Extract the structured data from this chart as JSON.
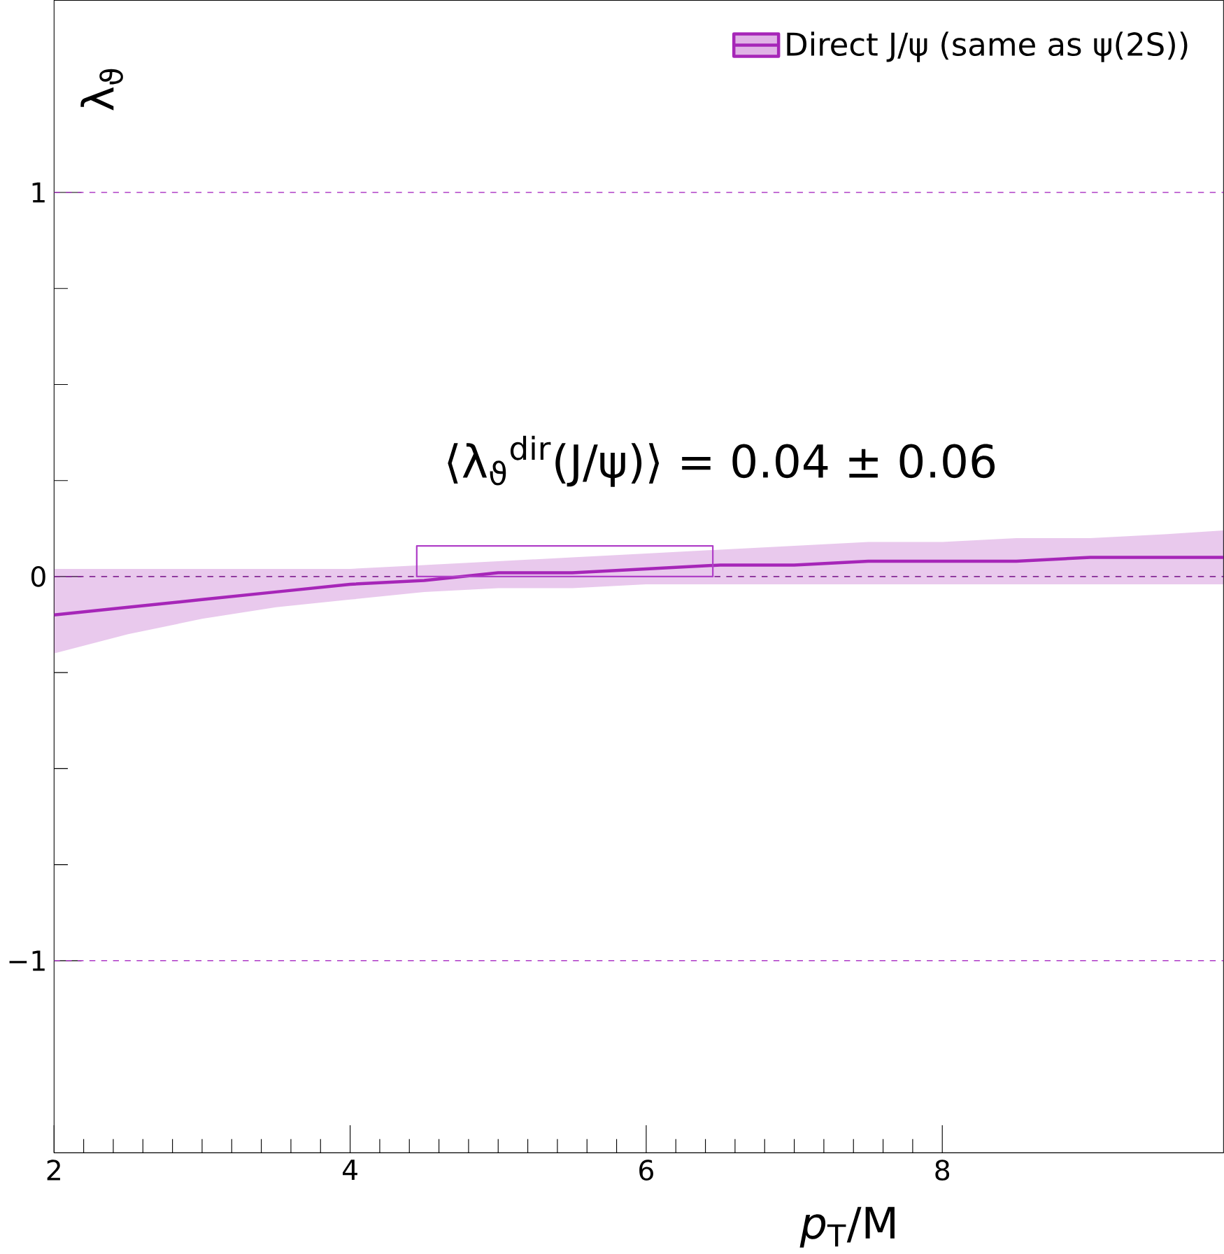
{
  "chart_data": {
    "type": "line",
    "xlabel": "*p*$_{T}$/M",
    "ylabel": "λ$_{ϑ}$",
    "xlim": [
      2,
      9.9
    ],
    "ylim": [
      -1.5,
      1.5
    ],
    "xticks": [
      2,
      4,
      6,
      8
    ],
    "yticks": [
      {
        "value": -1,
        "label": "−1"
      },
      0,
      1
    ],
    "grid": false,
    "legend": "top right",
    "marker": "none",
    "line_style": "solid",
    "series": [
      {
        "name": "Direct J/ψ (same as ψ(2S))",
        "color": "#a626b8",
        "x": [
          2,
          2.5,
          3,
          3.5,
          4,
          4.5,
          5,
          5.5,
          6,
          6.5,
          7,
          7.5,
          8,
          8.5,
          9,
          9.5,
          9.9
        ],
        "values": [
          -0.1,
          -0.08,
          -0.06,
          -0.04,
          -0.02,
          -0.01,
          0.01,
          0.01,
          0.02,
          0.03,
          0.03,
          0.04,
          0.04,
          0.04,
          0.05,
          0.05,
          0.05
        ],
        "lower": [
          -0.2,
          -0.15,
          -0.11,
          -0.08,
          -0.06,
          -0.04,
          -0.03,
          -0.03,
          -0.02,
          -0.02,
          -0.02,
          -0.02,
          -0.02,
          -0.02,
          -0.02,
          -0.02,
          -0.02
        ],
        "upper": [
          0.02,
          0.02,
          0.02,
          0.02,
          0.02,
          0.03,
          0.04,
          0.05,
          0.06,
          0.07,
          0.08,
          0.09,
          0.09,
          0.1,
          0.1,
          0.11,
          0.12
        ]
      },
      {
        "type": "bar",
        "color": "#b040c8",
        "x": [
          5.45
        ],
        "values": [
          0.08
        ],
        "base": [
          0
        ]
      }
    ],
    "ref_lines": [
      {
        "axis": "y",
        "value": 1,
        "color": "#b040c8",
        "line_style": "dashed"
      },
      {
        "axis": "y",
        "value": 0,
        "color": "#7a2a8a",
        "line_style": "dashed"
      },
      {
        "axis": "y",
        "value": -1,
        "color": "#b040c8",
        "line_style": "dashed"
      }
    ],
    "annotations": [
      "⟨λ$_{ϑ}$$^{dir}$(J/ψ)⟩ = 0.04 ± 0.06"
    ]
  }
}
